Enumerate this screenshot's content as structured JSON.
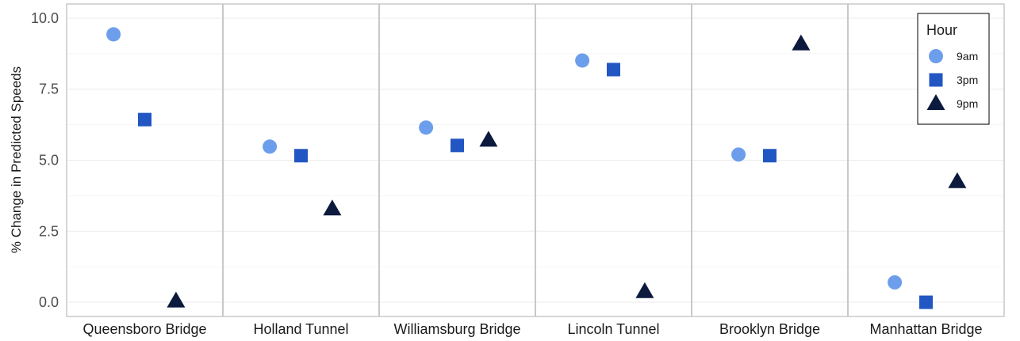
{
  "chart_data": {
    "type": "scatter",
    "title": "",
    "xlabel": "",
    "ylabel": "% Change in Predicted Speeds",
    "ylim": [
      -0.5,
      10.5
    ],
    "yticks": [
      0.0,
      2.5,
      5.0,
      7.5,
      10.0
    ],
    "ytick_labels": [
      "0.0",
      "2.5",
      "5.0",
      "7.5",
      "10.0"
    ],
    "categories": [
      "Queensboro Bridge",
      "Holland Tunnel",
      "Williamsburg Bridge",
      "Lincoln Tunnel",
      "Brooklyn Bridge",
      "Manhattan Bridge"
    ],
    "grid": true,
    "legend": {
      "title": "Hour",
      "position": "top-right"
    },
    "series": [
      {
        "name": "9am",
        "marker": "circle",
        "color": "#6d9eeb",
        "values": [
          9.43,
          5.48,
          6.15,
          8.51,
          5.2,
          0.7
        ]
      },
      {
        "name": "3pm",
        "marker": "square",
        "color": "#2256c2",
        "values": [
          6.43,
          5.16,
          5.52,
          8.19,
          5.16,
          0.0
        ]
      },
      {
        "name": "9pm",
        "marker": "triangle",
        "color": "#0b1a3d",
        "values": [
          0.04,
          3.28,
          5.7,
          0.37,
          9.09,
          4.24
        ]
      }
    ]
  }
}
